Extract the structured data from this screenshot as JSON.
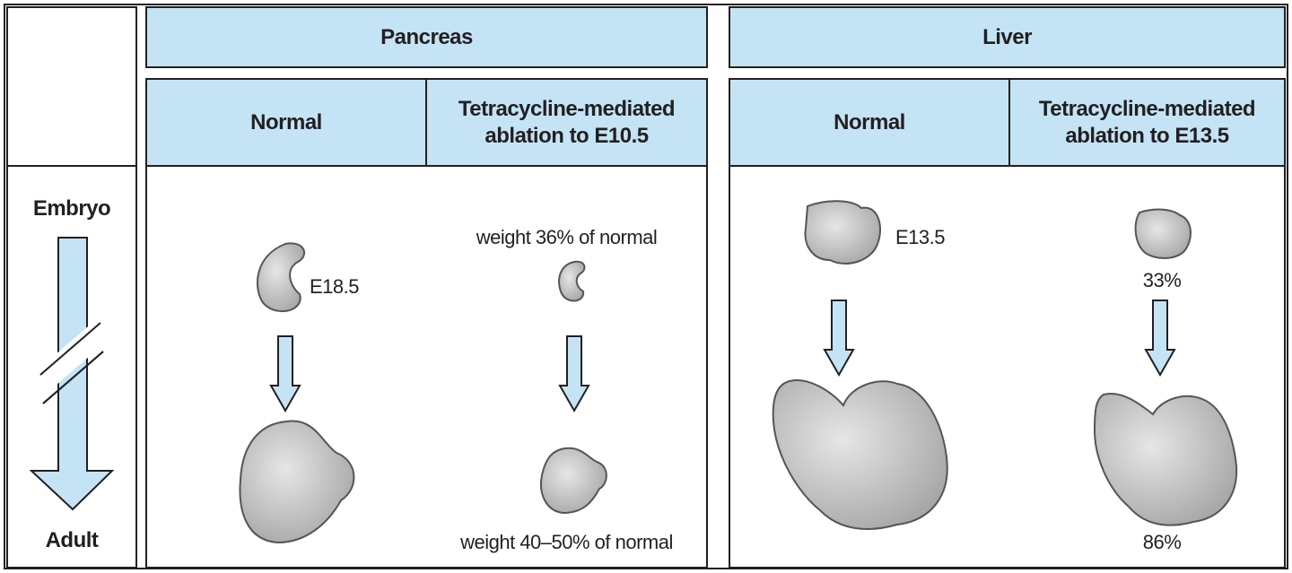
{
  "axis": {
    "start": "Embryo",
    "end": "Adult"
  },
  "panels": [
    {
      "title": "Pancreas",
      "columns": [
        {
          "label": "Normal",
          "stage": "E18.5"
        },
        {
          "label": "Tetracycline-mediated ablation to E10.5",
          "top_note": "weight 36% of normal",
          "bottom_note": "weight 40–50% of normal"
        }
      ]
    },
    {
      "title": "Liver",
      "columns": [
        {
          "label": "Normal",
          "stage": "E13.5"
        },
        {
          "label": "Tetracycline-mediated ablation to E13.5",
          "top_note": "33%",
          "bottom_note": "86%"
        }
      ]
    }
  ]
}
